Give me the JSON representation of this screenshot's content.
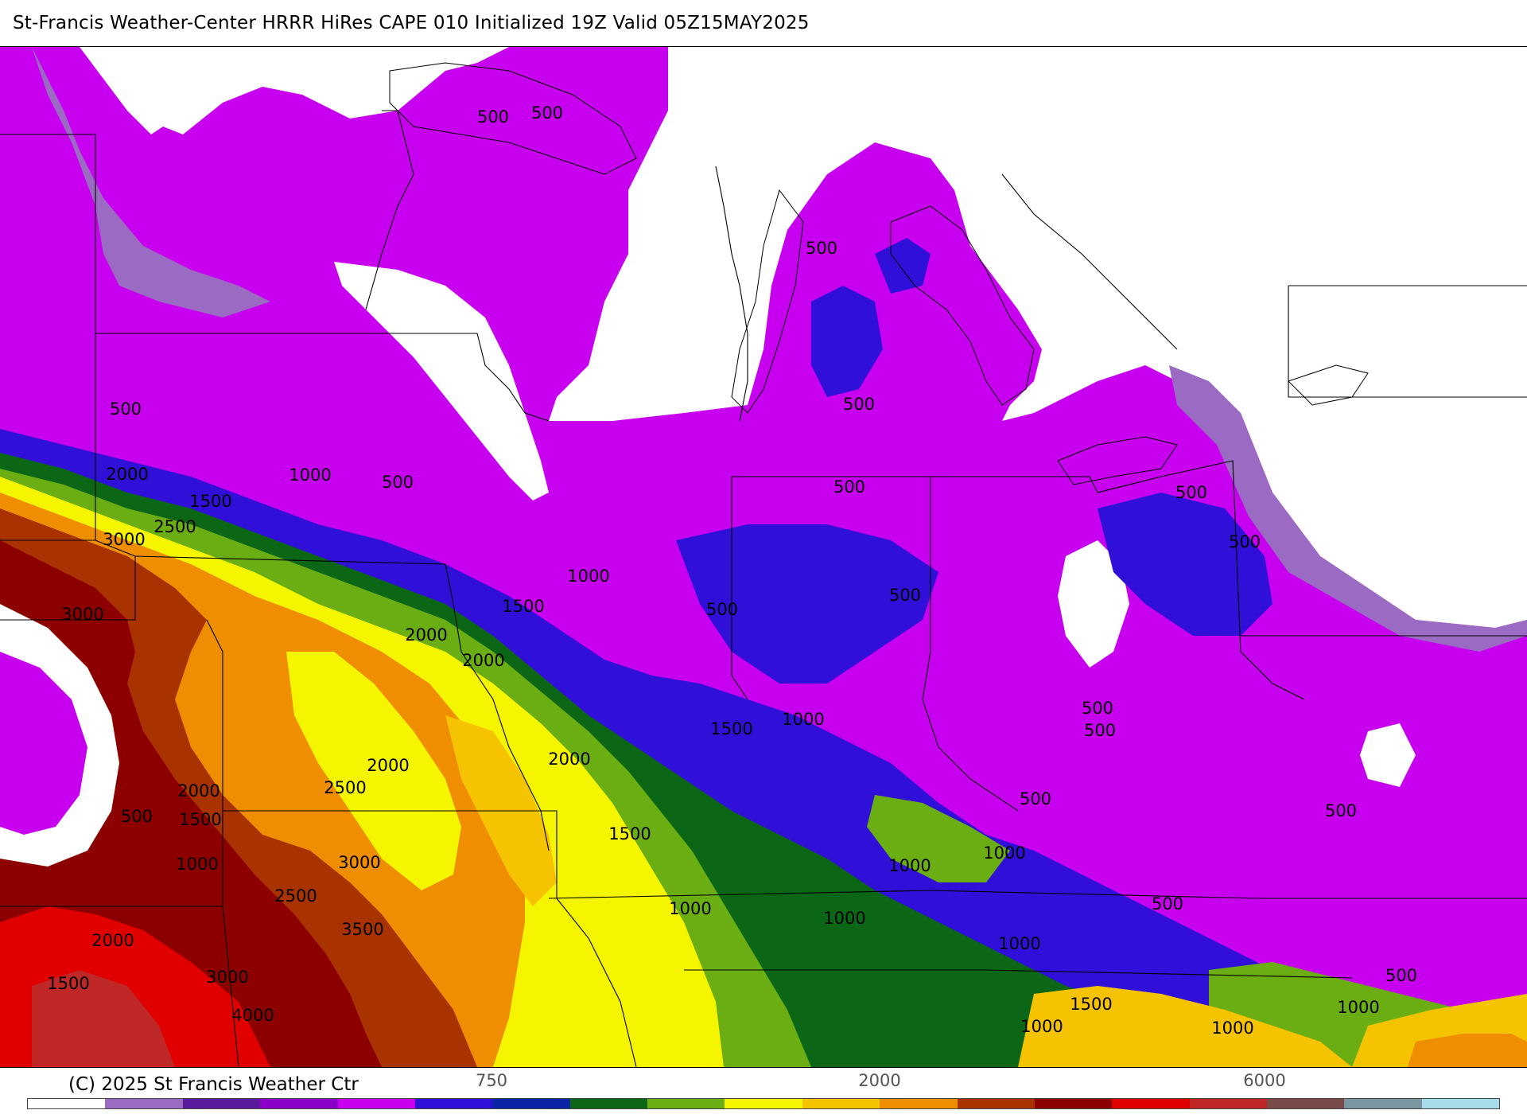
{
  "title": "St-Francis Weather-Center HRRR HiRes CAPE  010 Initialized  19Z Valid 05Z15MAY2025",
  "copyright": "(C) 2025 St Francis Weather Ctr",
  "colorbar": {
    "colors": [
      "#ffffff",
      "#9b6bc4",
      "#5c1a9e",
      "#8a00c8",
      "#c800f0",
      "#3010d8",
      "#0a24a8",
      "#0b6616",
      "#6aae14",
      "#f5f500",
      "#f5c300",
      "#ef8e00",
      "#a83200",
      "#8c0000",
      "#e00000",
      "#c02828",
      "#7a4a48",
      "#7a96a0",
      "#a6dde8"
    ],
    "tick_labels": [
      "750",
      "2000",
      "6000"
    ]
  },
  "map": {
    "levels": [
      500,
      1000,
      1500,
      2000,
      2500,
      3000,
      3500,
      4000
    ],
    "contour_labels": [
      {
        "text": "500"
      },
      {
        "text": "500"
      },
      {
        "text": "500"
      },
      {
        "text": "500"
      },
      {
        "text": "500"
      },
      {
        "text": "500"
      },
      {
        "text": "500"
      },
      {
        "text": "500"
      },
      {
        "text": "500"
      },
      {
        "text": "500"
      },
      {
        "text": "500"
      },
      {
        "text": "500"
      },
      {
        "text": "500"
      },
      {
        "text": "500"
      },
      {
        "text": "500"
      },
      {
        "text": "500"
      },
      {
        "text": "500"
      },
      {
        "text": "500"
      },
      {
        "text": "1000"
      },
      {
        "text": "1000"
      },
      {
        "text": "1000"
      },
      {
        "text": "1000"
      },
      {
        "text": "1000"
      },
      {
        "text": "1000"
      },
      {
        "text": "1000"
      },
      {
        "text": "1000"
      },
      {
        "text": "1000"
      },
      {
        "text": "1000"
      },
      {
        "text": "1000"
      },
      {
        "text": "1000"
      },
      {
        "text": "1500"
      },
      {
        "text": "1500"
      },
      {
        "text": "1500"
      },
      {
        "text": "1500"
      },
      {
        "text": "1500"
      },
      {
        "text": "1500"
      },
      {
        "text": "1500"
      },
      {
        "text": "2000"
      },
      {
        "text": "2000"
      },
      {
        "text": "2000"
      },
      {
        "text": "2000"
      },
      {
        "text": "2000"
      },
      {
        "text": "2000"
      },
      {
        "text": "2000"
      },
      {
        "text": "2500"
      },
      {
        "text": "2500"
      },
      {
        "text": "2500"
      },
      {
        "text": "3000"
      },
      {
        "text": "3000"
      },
      {
        "text": "3000"
      },
      {
        "text": "3000"
      },
      {
        "text": "3500"
      },
      {
        "text": "4000"
      }
    ]
  }
}
